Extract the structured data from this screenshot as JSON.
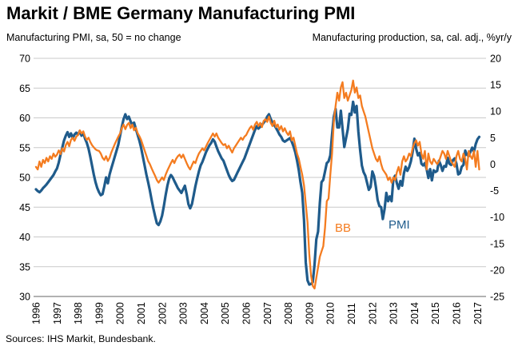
{
  "chart": {
    "title": "Markit / BME Germany Manufacturing PMI",
    "left_axis_title": "Manufacturing PMI, sa, 50 = no change",
    "right_axis_title": "Manufacturing production, sa, cal. adj., %yr/y",
    "source": "Sources: IHS Markit, Bundesbank.",
    "bb_label": "BB",
    "pmi_label": "PMI"
  },
  "colors": {
    "pmi_blue": "#1F5B8B",
    "bb_orange": "#F47C20",
    "gridline": "#C9C9C9",
    "axis_line": "#999999",
    "text": "#000000"
  },
  "chart_data": {
    "type": "line",
    "title": "Markit / BME Germany Manufacturing PMI",
    "x_frequency": "monthly",
    "x_range": [
      "1996-01",
      "2017-02"
    ],
    "x_tick_labels": [
      "1996",
      "1997",
      "1998",
      "1999",
      "2000",
      "2001",
      "2002",
      "2003",
      "2004",
      "2005",
      "2006",
      "2007",
      "2008",
      "2009",
      "2010",
      "2011",
      "2012",
      "2013",
      "2014",
      "2015",
      "2016",
      "2017"
    ],
    "grid": true,
    "legend_position": "inline-annotations",
    "left_axis": {
      "label": "Manufacturing PMI, sa, 50 = no change",
      "min": 30,
      "max": 70,
      "ticks": [
        70,
        65,
        60,
        55,
        50,
        45,
        40,
        35,
        30
      ]
    },
    "right_axis": {
      "label": "Manufacturing production, sa, cal. adj., %yr/y",
      "min": -25,
      "max": 20,
      "ticks": [
        20,
        15,
        10,
        5,
        0,
        -5,
        -10,
        -15,
        -20,
        -25
      ]
    },
    "series": [
      {
        "name": "PMI",
        "axis": "left",
        "color": "#1F5B8B",
        "line_width": 3.2,
        "values": [
          48.0,
          47.7,
          47.5,
          47.8,
          48.2,
          48.5,
          48.8,
          49.2,
          49.6,
          50.0,
          50.4,
          51.0,
          51.5,
          52.5,
          53.8,
          55.0,
          56.2,
          57.0,
          57.6,
          56.8,
          57.4,
          56.6,
          57.2,
          57.5,
          57.2,
          57.8,
          57.0,
          57.5,
          56.5,
          55.8,
          54.8,
          53.5,
          52.0,
          50.5,
          49.2,
          48.2,
          47.5,
          47.0,
          47.2,
          48.5,
          50.0,
          49.0,
          50.5,
          51.5,
          52.5,
          53.5,
          54.5,
          55.5,
          57.0,
          58.5,
          59.8,
          60.6,
          59.8,
          60.2,
          59.4,
          58.8,
          59.2,
          58.2,
          57.2,
          56.2,
          55.0,
          53.5,
          52.0,
          50.5,
          49.2,
          47.8,
          46.2,
          44.8,
          43.5,
          42.3,
          42.0,
          42.6,
          43.6,
          45.2,
          47.0,
          48.6,
          49.8,
          50.4,
          50.0,
          49.4,
          48.8,
          48.2,
          47.8,
          47.4,
          48.0,
          48.6,
          47.2,
          45.5,
          44.8,
          45.5,
          47.0,
          48.5,
          49.8,
          51.0,
          52.0,
          52.6,
          53.4,
          54.2,
          54.8,
          55.4,
          55.8,
          56.4,
          56.0,
          55.2,
          54.4,
          53.8,
          53.2,
          52.8,
          52.0,
          51.2,
          50.4,
          49.8,
          49.4,
          49.6,
          50.2,
          50.8,
          51.4,
          52.0,
          52.6,
          53.2,
          54.0,
          54.8,
          55.6,
          56.4,
          57.2,
          58.0,
          58.6,
          58.2,
          58.5,
          58.8,
          59.2,
          59.6,
          60.2,
          60.6,
          59.8,
          59.2,
          58.8,
          58.3,
          57.8,
          57.2,
          56.8,
          56.2,
          56.0,
          56.2,
          56.4,
          56.6,
          56.0,
          55.2,
          54.2,
          52.8,
          51.2,
          49.2,
          47.4,
          42.9,
          35.7,
          32.7,
          32.0,
          32.1,
          32.4,
          35.4,
          39.6,
          40.9,
          45.7,
          49.2,
          49.6,
          51.0,
          52.4,
          52.7,
          53.7,
          57.2,
          60.2,
          61.5,
          58.4,
          58.4,
          61.2,
          58.2,
          55.1,
          56.6,
          58.1,
          60.7,
          60.5,
          62.7,
          60.9,
          62.0,
          57.7,
          54.6,
          52.0,
          50.9,
          50.3,
          49.1,
          47.9,
          48.4,
          51.0,
          50.2,
          48.4,
          46.2,
          45.2,
          45.0,
          43.0,
          44.7,
          47.4,
          46.0,
          46.8,
          46.0,
          49.8,
          50.3,
          49.0,
          48.1,
          49.4,
          48.6,
          50.7,
          51.8,
          51.1,
          51.7,
          52.7,
          54.3,
          56.5,
          54.8,
          53.7,
          54.1,
          52.3,
          52.0,
          52.4,
          51.4,
          49.9,
          51.4,
          49.5,
          51.2,
          50.9,
          51.1,
          52.8,
          52.1,
          51.1,
          51.9,
          51.8,
          53.3,
          52.3,
          52.1,
          52.9,
          53.2,
          52.3,
          50.5,
          50.7,
          51.8,
          52.1,
          54.5,
          53.8,
          53.6,
          54.3,
          55.0,
          54.3,
          55.6,
          56.4,
          56.8
        ]
      },
      {
        "name": "BB",
        "axis": "right",
        "color": "#F47C20",
        "line_width": 2.3,
        "values": [
          -0.5,
          -1.0,
          0.5,
          -0.5,
          0.8,
          0.2,
          1.2,
          0.5,
          1.5,
          1.0,
          2.0,
          1.4,
          1.8,
          2.6,
          1.9,
          3.0,
          2.4,
          3.6,
          4.2,
          3.4,
          4.6,
          5.0,
          4.4,
          5.2,
          5.5,
          6.4,
          5.8,
          6.2,
          5.2,
          4.6,
          5.0,
          4.2,
          3.6,
          3.2,
          2.8,
          2.6,
          2.5,
          2.0,
          1.2,
          0.8,
          1.5,
          0.6,
          1.2,
          2.2,
          3.0,
          3.8,
          4.5,
          5.2,
          5.8,
          6.8,
          7.5,
          6.6,
          7.4,
          7.8,
          6.8,
          7.5,
          6.4,
          6.9,
          5.9,
          5.3,
          4.6,
          3.6,
          2.6,
          1.6,
          0.6,
          0.0,
          -0.8,
          -1.5,
          -2.2,
          -3.0,
          -3.5,
          -3.0,
          -2.5,
          -3.0,
          -2.0,
          -1.2,
          -0.5,
          0.2,
          0.8,
          0.2,
          1.0,
          1.5,
          1.8,
          1.2,
          1.8,
          1.0,
          0.2,
          -0.5,
          -1.0,
          -0.2,
          0.5,
          0.2,
          1.2,
          2.0,
          2.5,
          3.0,
          2.6,
          3.3,
          4.0,
          4.6,
          5.2,
          5.8,
          5.2,
          5.8,
          5.0,
          4.5,
          4.0,
          3.6,
          3.8,
          3.0,
          3.5,
          2.8,
          2.2,
          3.0,
          3.5,
          4.0,
          4.5,
          5.0,
          4.6,
          5.2,
          5.5,
          6.2,
          6.8,
          7.2,
          6.5,
          7.5,
          8.0,
          7.2,
          7.8,
          7.0,
          8.2,
          8.5,
          8.0,
          9.0,
          7.8,
          7.2,
          8.2,
          7.0,
          7.5,
          6.5,
          7.2,
          6.2,
          6.8,
          6.0,
          5.5,
          6.2,
          4.5,
          5.0,
          3.5,
          2.0,
          1.0,
          -0.5,
          -2.0,
          -4.0,
          -7.5,
          -11.0,
          -17.0,
          -21.0,
          -23.0,
          -23.5,
          -21.5,
          -19.5,
          -17.5,
          -16.5,
          -15.5,
          -12.0,
          -7.0,
          -6.5,
          -2.0,
          2.0,
          8.0,
          11.0,
          13.5,
          12.0,
          14.5,
          15.5,
          12.5,
          13.5,
          12.0,
          13.0,
          14.0,
          15.8,
          13.5,
          14.5,
          12.5,
          13.0,
          11.0,
          10.0,
          9.0,
          7.5,
          6.0,
          4.5,
          3.0,
          2.0,
          1.0,
          0.5,
          1.5,
          0.0,
          -1.0,
          -1.5,
          -2.0,
          -3.0,
          -2.5,
          -3.5,
          -2.5,
          -3.0,
          -1.5,
          -0.5,
          -2.0,
          0.5,
          1.5,
          0.5,
          1.0,
          2.0,
          1.5,
          3.0,
          4.0,
          4.5,
          3.5,
          4.2,
          2.0,
          1.0,
          2.5,
          -1.0,
          2.0,
          0.5,
          0.0,
          1.0,
          0.5,
          0.0,
          0.5,
          1.5,
          2.5,
          2.0,
          1.0,
          2.5,
          1.5,
          0.5,
          0.0,
          -0.5,
          1.5,
          2.5,
          1.0,
          0.5,
          2.0,
          1.0,
          -1.0,
          2.5,
          1.5,
          1.0,
          2.5,
          -0.5,
          2.5,
          -1.0
        ]
      }
    ]
  }
}
